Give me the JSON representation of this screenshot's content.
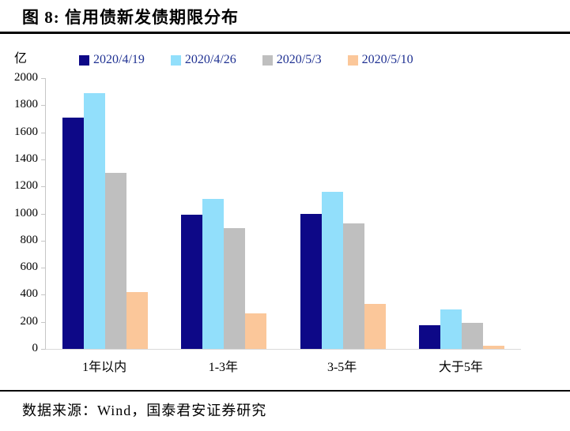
{
  "figure": {
    "title": "图 8:  信用债新发债期限分布",
    "unit_label": "亿",
    "source_text": "数据来源：Wind，国泰君安证券研究"
  },
  "colors": {
    "series_navy": "#0d0887",
    "series_lightblue": "#92dffb",
    "series_gray": "#bfbfbf",
    "series_orange": "#fbc79a",
    "legend_text": "#1f3192",
    "axis_line": "#c6c6c6",
    "title_text": "#000000"
  },
  "chart_data": {
    "type": "bar",
    "title": "图 8: 信用债新发债期限分布",
    "unit": "亿",
    "categories": [
      "1年以内",
      "1-3年",
      "3-5年",
      "大于5年"
    ],
    "series": [
      {
        "name": "2020/4/19",
        "color": "#0d0887",
        "values": [
          1710,
          990,
          1000,
          175
        ]
      },
      {
        "name": "2020/4/26",
        "color": "#92dffb",
        "values": [
          1890,
          1110,
          1160,
          290
        ]
      },
      {
        "name": "2020/5/3",
        "color": "#bfbfbf",
        "values": [
          1300,
          895,
          925,
          190
        ]
      },
      {
        "name": "2020/5/10",
        "color": "#fbc79a",
        "values": [
          420,
          260,
          330,
          25
        ]
      }
    ],
    "xlabel": "",
    "ylabel": "亿",
    "ylim": [
      0,
      2000
    ],
    "ytick_step": 200,
    "grid": false,
    "legend_position": "top"
  }
}
